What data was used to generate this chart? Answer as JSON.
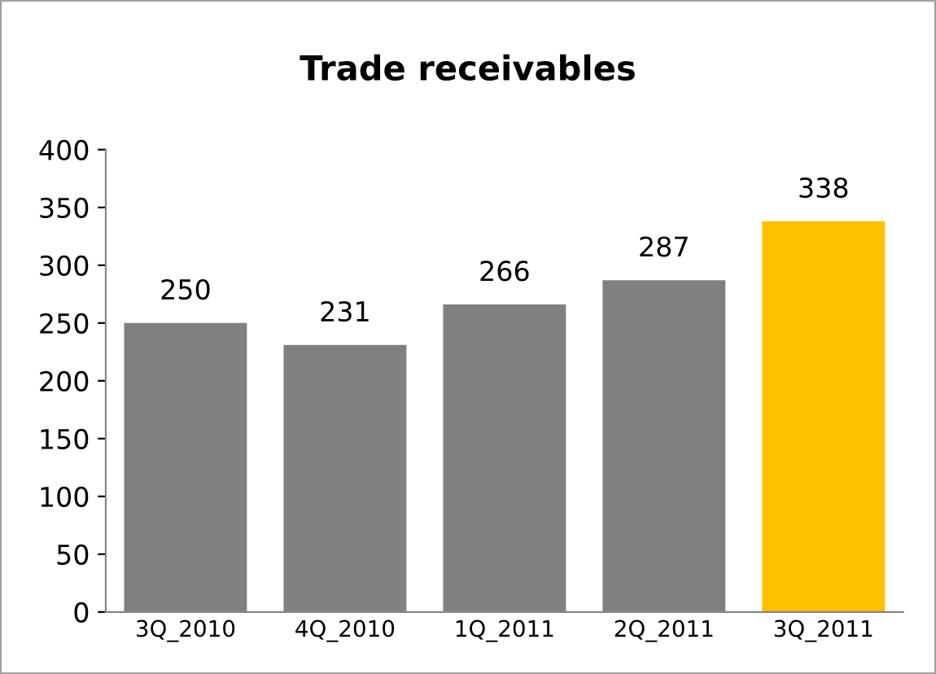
{
  "chart_data": {
    "type": "bar",
    "title": "Trade receivables",
    "categories": [
      "3Q_2010",
      "4Q_2010",
      "1Q_2011",
      "2Q_2011",
      "3Q_2011"
    ],
    "values": [
      250,
      231,
      266,
      287,
      338
    ],
    "colors": [
      "#808080",
      "#808080",
      "#808080",
      "#808080",
      "#ffc000"
    ],
    "ylim": [
      0,
      400
    ],
    "yticks": [
      0,
      50,
      100,
      150,
      200,
      250,
      300,
      350,
      400
    ],
    "data_labels": true,
    "grid": false,
    "legend": false
  }
}
